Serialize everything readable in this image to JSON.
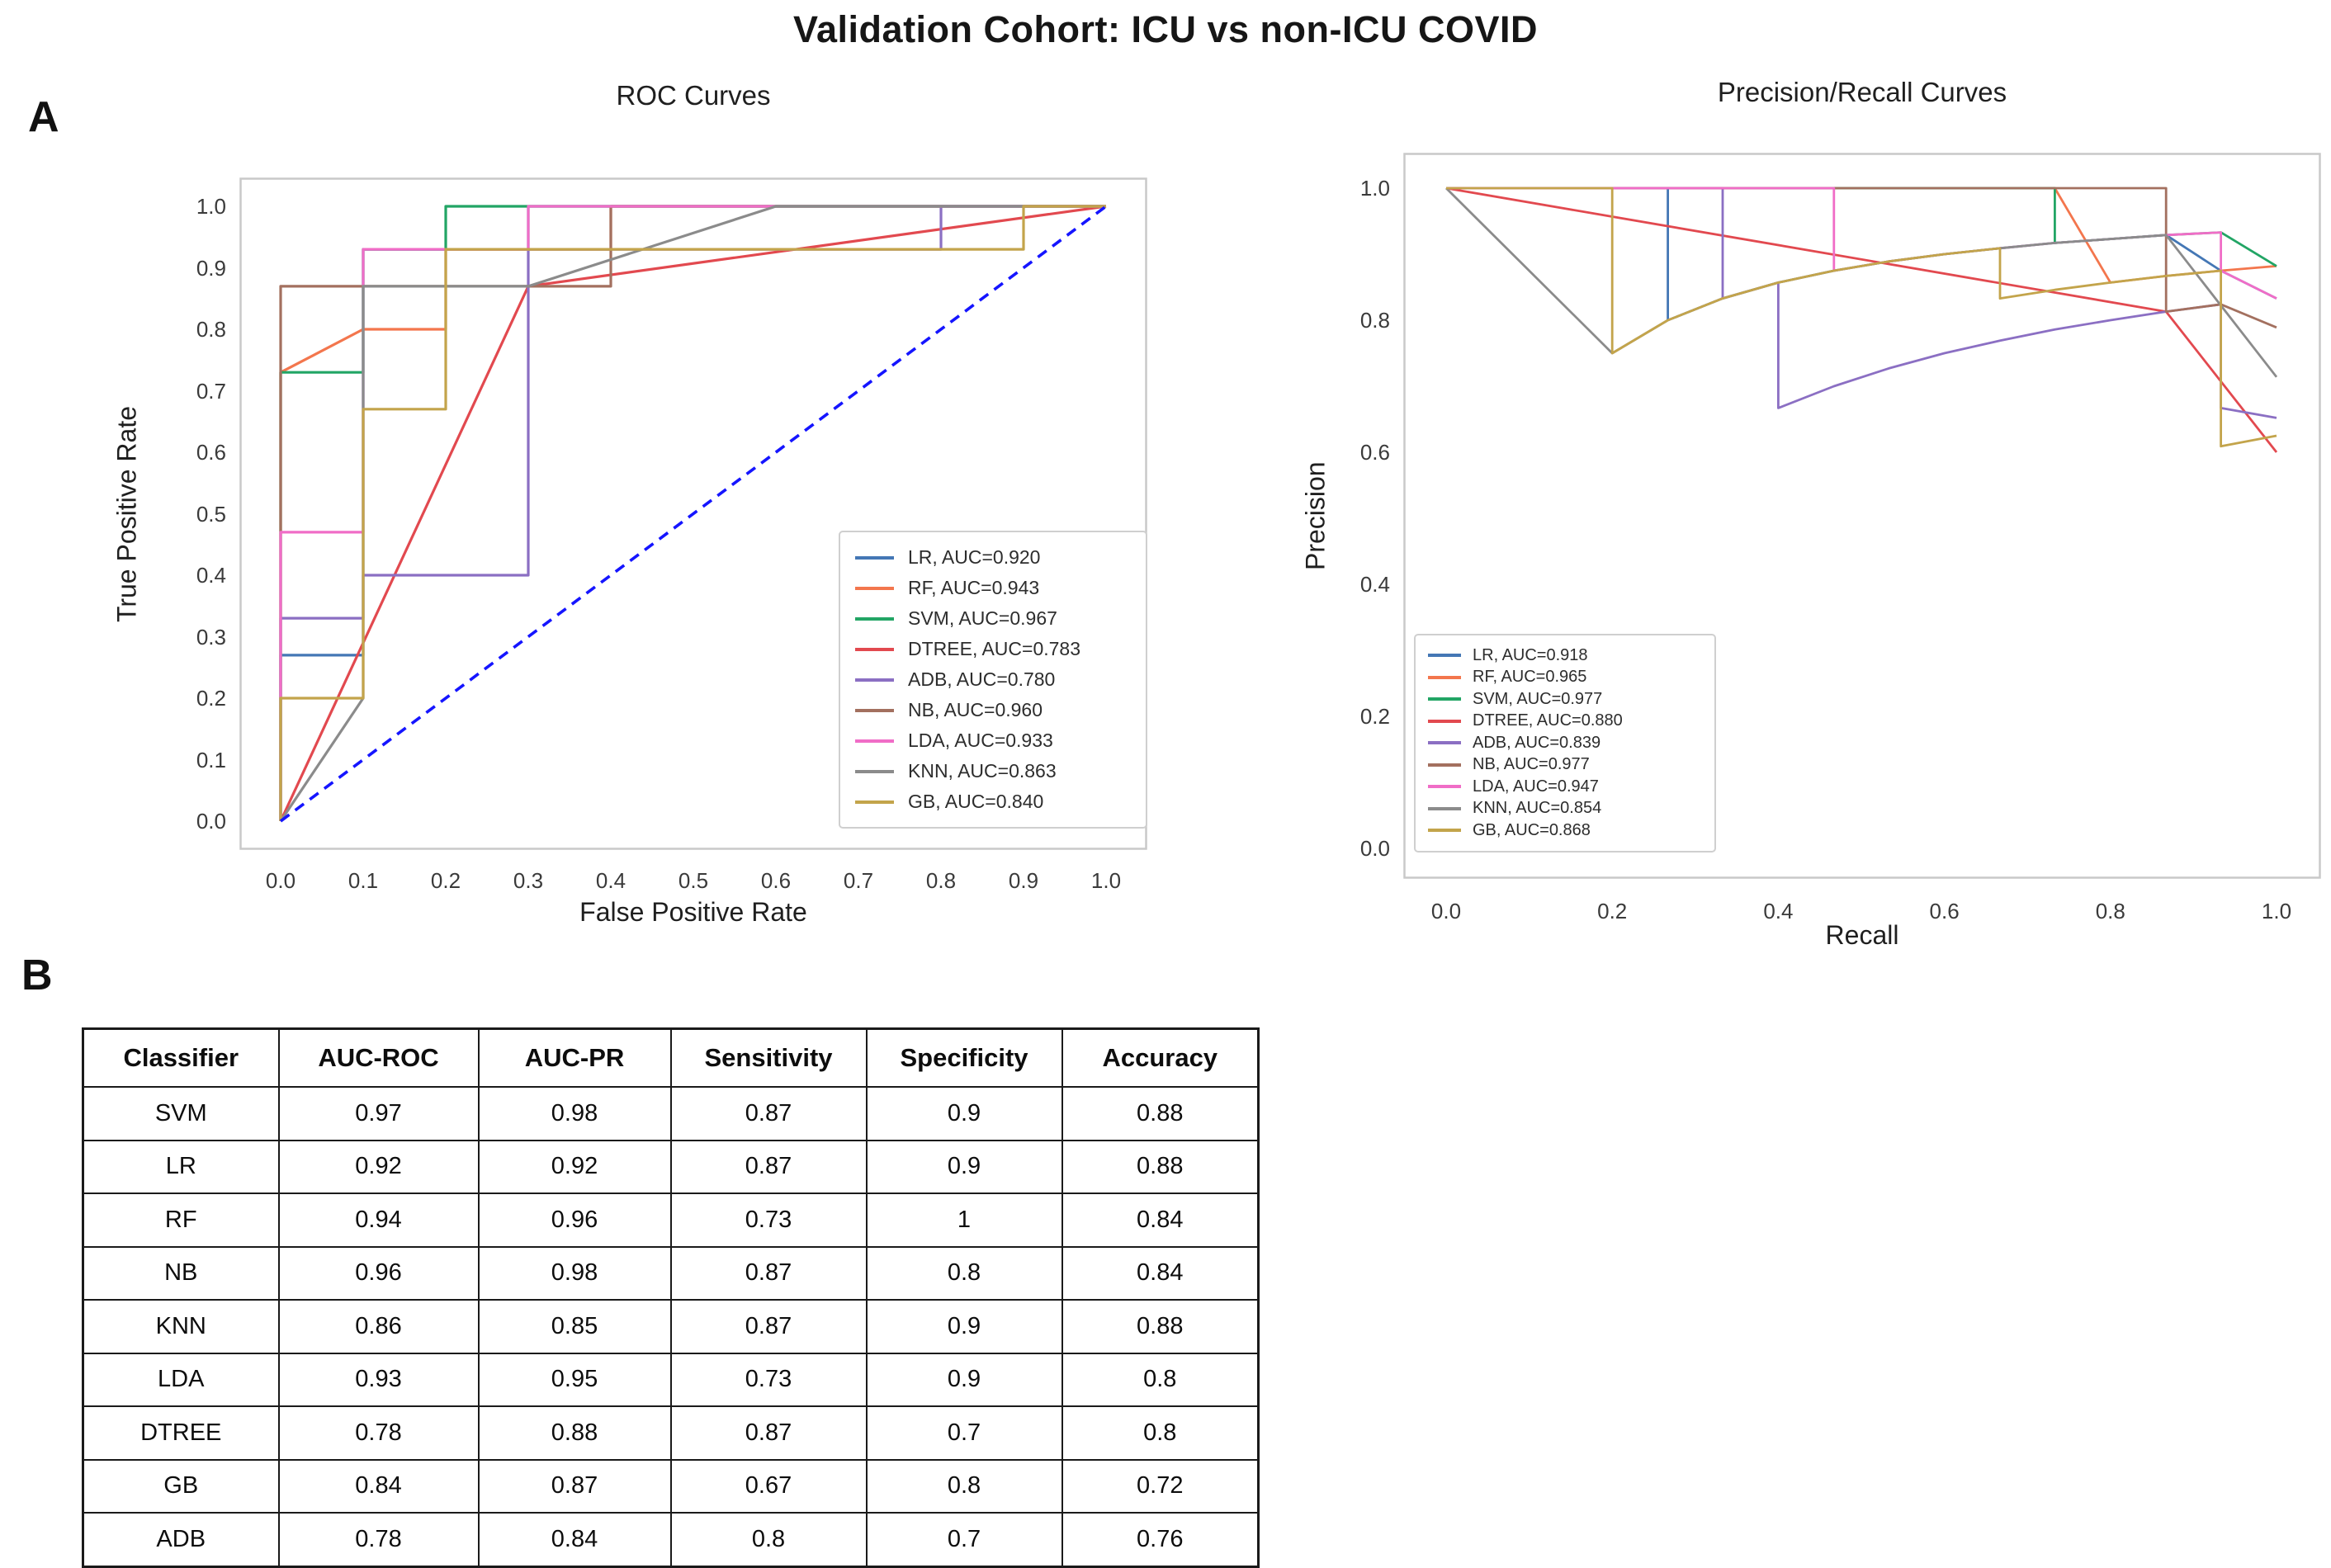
{
  "figure": {
    "title": "Validation Cohort: ICU vs non-ICU COVID",
    "panel_a": "A",
    "panel_b": "B"
  },
  "chart_data": [
    {
      "id": "roc",
      "type": "line",
      "title": "ROC Curves",
      "xlabel": "False Positive Rate",
      "ylabel": "True Positive Rate",
      "xlim": [
        0,
        1
      ],
      "ylim": [
        0,
        1
      ],
      "grid": false,
      "legend_position": "lower right",
      "xticks": [
        "0.0",
        "0.1",
        "0.2",
        "0.3",
        "0.4",
        "0.5",
        "0.6",
        "0.7",
        "0.8",
        "0.9",
        "1.0"
      ],
      "yticks": [
        "0.0",
        "0.1",
        "0.2",
        "0.3",
        "0.4",
        "0.5",
        "0.6",
        "0.7",
        "0.8",
        "0.9",
        "1.0"
      ],
      "chance_line": {
        "style": "dashed",
        "color": "#1515ff",
        "points": [
          [
            0,
            0
          ],
          [
            1,
            1
          ]
        ]
      },
      "series": [
        {
          "name": "LR",
          "auc": 0.92,
          "legend": "LR, AUC=0.920",
          "color": "#4477b5",
          "points": [
            [
              0,
              0
            ],
            [
              0,
              0.27
            ],
            [
              0.1,
              0.27
            ],
            [
              0.1,
              0.93
            ],
            [
              0.3,
              0.93
            ],
            [
              0.3,
              1
            ],
            [
              1,
              1
            ]
          ]
        },
        {
          "name": "RF",
          "auc": 0.943,
          "legend": "RF, AUC=0.943",
          "color": "#f3764d",
          "points": [
            [
              0,
              0
            ],
            [
              0,
              0.73
            ],
            [
              0.1,
              0.8
            ],
            [
              0.2,
              0.8
            ],
            [
              0.2,
              0.93
            ],
            [
              0.4,
              0.93
            ],
            [
              0.4,
              1
            ],
            [
              1,
              1
            ]
          ]
        },
        {
          "name": "SVM",
          "auc": 0.967,
          "legend": "SVM, AUC=0.967",
          "color": "#22a565",
          "points": [
            [
              0,
              0
            ],
            [
              0,
              0.73
            ],
            [
              0.1,
              0.73
            ],
            [
              0.1,
              0.93
            ],
            [
              0.2,
              0.93
            ],
            [
              0.2,
              1
            ],
            [
              1,
              1
            ]
          ]
        },
        {
          "name": "DTREE",
          "auc": 0.783,
          "legend": "DTREE, AUC=0.783",
          "color": "#e2494f",
          "points": [
            [
              0,
              0
            ],
            [
              0.3,
              0.87
            ],
            [
              1,
              1
            ]
          ]
        },
        {
          "name": "ADB",
          "auc": 0.78,
          "legend": "ADB, AUC=0.780",
          "color": "#8b6fc3",
          "points": [
            [
              0,
              0
            ],
            [
              0,
              0.33
            ],
            [
              0.1,
              0.33
            ],
            [
              0.1,
              0.4
            ],
            [
              0.3,
              0.4
            ],
            [
              0.3,
              0.93
            ],
            [
              0.8,
              0.93
            ],
            [
              0.8,
              1
            ],
            [
              1,
              1
            ]
          ]
        },
        {
          "name": "NB",
          "auc": 0.96,
          "legend": "NB, AUC=0.960",
          "color": "#a3705f",
          "points": [
            [
              0,
              0
            ],
            [
              0,
              0.87
            ],
            [
              0.4,
              0.87
            ],
            [
              0.4,
              1
            ],
            [
              1,
              1
            ]
          ]
        },
        {
          "name": "LDA",
          "auc": 0.933,
          "legend": "LDA, AUC=0.933",
          "color": "#f06dc7",
          "points": [
            [
              0,
              0
            ],
            [
              0,
              0.47
            ],
            [
              0.1,
              0.47
            ],
            [
              0.1,
              0.93
            ],
            [
              0.3,
              0.93
            ],
            [
              0.3,
              1
            ],
            [
              1,
              1
            ]
          ]
        },
        {
          "name": "KNN",
          "auc": 0.863,
          "legend": "KNN, AUC=0.863",
          "color": "#8b8b8b",
          "points": [
            [
              0,
              0
            ],
            [
              0.1,
              0.2
            ],
            [
              0.1,
              0.87
            ],
            [
              0.3,
              0.87
            ],
            [
              0.6,
              1
            ],
            [
              1,
              1
            ]
          ]
        },
        {
          "name": "GB",
          "auc": 0.84,
          "legend": "GB, AUC=0.840",
          "color": "#c3a44b",
          "points": [
            [
              0,
              0
            ],
            [
              0,
              0.2
            ],
            [
              0.1,
              0.2
            ],
            [
              0.1,
              0.67
            ],
            [
              0.2,
              0.67
            ],
            [
              0.2,
              0.93
            ],
            [
              0.9,
              0.93
            ],
            [
              0.9,
              1
            ],
            [
              1,
              1
            ]
          ]
        }
      ]
    },
    {
      "id": "pr",
      "type": "line",
      "title": "Precision/Recall Curves",
      "xlabel": "Recall",
      "ylabel": "Precision",
      "xlim": [
        0,
        1
      ],
      "ylim": [
        0,
        1
      ],
      "grid": false,
      "legend_position": "lower left",
      "xticks": [
        "0.0",
        "0.2",
        "0.4",
        "0.6",
        "0.8",
        "1.0"
      ],
      "yticks": [
        "0.0",
        "0.2",
        "0.4",
        "0.6",
        "0.8",
        "1.0"
      ],
      "series": [
        {
          "name": "LR",
          "auc": 0.918,
          "legend": "LR, AUC=0.918",
          "color": "#4477b5",
          "points": [
            [
              0,
              1
            ],
            [
              0.267,
              1
            ],
            [
              0.267,
              0.8
            ],
            [
              0.333,
              0.833
            ],
            [
              0.4,
              0.857
            ],
            [
              0.467,
              0.875
            ],
            [
              0.533,
              0.889
            ],
            [
              0.6,
              0.9
            ],
            [
              0.667,
              0.909
            ],
            [
              0.733,
              0.917
            ],
            [
              0.8,
              0.923
            ],
            [
              0.867,
              0.929
            ],
            [
              0.933,
              0.875
            ],
            [
              1,
              0.833
            ]
          ]
        },
        {
          "name": "RF",
          "auc": 0.965,
          "legend": "RF, AUC=0.965",
          "color": "#f3764d",
          "points": [
            [
              0,
              1
            ],
            [
              0.733,
              1
            ],
            [
              0.8,
              0.857
            ],
            [
              0.867,
              0.867
            ],
            [
              0.933,
              0.875
            ],
            [
              1,
              0.882
            ]
          ]
        },
        {
          "name": "SVM",
          "auc": 0.977,
          "legend": "SVM, AUC=0.977",
          "color": "#22a565",
          "points": [
            [
              0,
              1
            ],
            [
              0.733,
              1
            ],
            [
              0.733,
              0.917
            ],
            [
              0.8,
              0.923
            ],
            [
              0.867,
              0.929
            ],
            [
              0.933,
              0.933
            ],
            [
              1,
              0.882
            ]
          ]
        },
        {
          "name": "DTREE",
          "auc": 0.88,
          "legend": "DTREE, AUC=0.880",
          "color": "#e2494f",
          "points": [
            [
              0,
              1
            ],
            [
              0.867,
              0.813
            ],
            [
              1,
              0.6
            ]
          ]
        },
        {
          "name": "ADB",
          "auc": 0.839,
          "legend": "ADB, AUC=0.839",
          "color": "#8b6fc3",
          "points": [
            [
              0,
              1
            ],
            [
              0.333,
              1
            ],
            [
              0.333,
              0.833
            ],
            [
              0.4,
              0.857
            ],
            [
              0.4,
              0.667
            ],
            [
              0.467,
              0.7
            ],
            [
              0.533,
              0.727
            ],
            [
              0.6,
              0.75
            ],
            [
              0.667,
              0.769
            ],
            [
              0.733,
              0.786
            ],
            [
              0.8,
              0.8
            ],
            [
              0.867,
              0.813
            ],
            [
              0.933,
              0.824
            ],
            [
              0.933,
              0.667
            ],
            [
              1,
              0.652
            ]
          ]
        },
        {
          "name": "NB",
          "auc": 0.977,
          "legend": "NB, AUC=0.977",
          "color": "#a3705f",
          "points": [
            [
              0,
              1
            ],
            [
              0.867,
              1
            ],
            [
              0.867,
              0.813
            ],
            [
              0.933,
              0.824
            ],
            [
              1,
              0.789
            ]
          ]
        },
        {
          "name": "LDA",
          "auc": 0.947,
          "legend": "LDA, AUC=0.947",
          "color": "#f06dc7",
          "points": [
            [
              0,
              1
            ],
            [
              0.467,
              1
            ],
            [
              0.467,
              0.875
            ],
            [
              0.533,
              0.889
            ],
            [
              0.6,
              0.9
            ],
            [
              0.667,
              0.909
            ],
            [
              0.733,
              0.917
            ],
            [
              0.8,
              0.923
            ],
            [
              0.867,
              0.929
            ],
            [
              0.933,
              0.933
            ],
            [
              0.933,
              0.875
            ],
            [
              1,
              0.833
            ]
          ]
        },
        {
          "name": "KNN",
          "auc": 0.854,
          "legend": "KNN, AUC=0.854",
          "color": "#8b8b8b",
          "points": [
            [
              0,
              1
            ],
            [
              0.2,
              0.75
            ],
            [
              0.267,
              0.8
            ],
            [
              0.333,
              0.833
            ],
            [
              0.4,
              0.857
            ],
            [
              0.467,
              0.875
            ],
            [
              0.533,
              0.889
            ],
            [
              0.6,
              0.9
            ],
            [
              0.667,
              0.909
            ],
            [
              0.733,
              0.917
            ],
            [
              0.8,
              0.923
            ],
            [
              0.867,
              0.929
            ],
            [
              1,
              0.714
            ]
          ]
        },
        {
          "name": "GB",
          "auc": 0.868,
          "legend": "GB, AUC=0.868",
          "color": "#c3a44b",
          "points": [
            [
              0,
              1
            ],
            [
              0.2,
              1
            ],
            [
              0.2,
              0.75
            ],
            [
              0.267,
              0.8
            ],
            [
              0.333,
              0.833
            ],
            [
              0.4,
              0.857
            ],
            [
              0.467,
              0.875
            ],
            [
              0.533,
              0.889
            ],
            [
              0.6,
              0.9
            ],
            [
              0.667,
              0.909
            ],
            [
              0.667,
              0.833
            ],
            [
              0.733,
              0.846
            ],
            [
              0.8,
              0.857
            ],
            [
              0.867,
              0.867
            ],
            [
              0.933,
              0.875
            ],
            [
              0.933,
              0.609
            ],
            [
              1,
              0.625
            ]
          ]
        }
      ]
    }
  ],
  "table": {
    "headers": [
      "Classifier",
      "AUC-ROC",
      "AUC-PR",
      "Sensitivity",
      "Specificity",
      "Accuracy"
    ],
    "rows": [
      [
        "SVM",
        "0.97",
        "0.98",
        "0.87",
        "0.9",
        "0.88"
      ],
      [
        "LR",
        "0.92",
        "0.92",
        "0.87",
        "0.9",
        "0.88"
      ],
      [
        "RF",
        "0.94",
        "0.96",
        "0.73",
        "1",
        "0.84"
      ],
      [
        "NB",
        "0.96",
        "0.98",
        "0.87",
        "0.8",
        "0.84"
      ],
      [
        "KNN",
        "0.86",
        "0.85",
        "0.87",
        "0.9",
        "0.88"
      ],
      [
        "LDA",
        "0.93",
        "0.95",
        "0.73",
        "0.9",
        "0.8"
      ],
      [
        "DTREE",
        "0.78",
        "0.88",
        "0.87",
        "0.7",
        "0.8"
      ],
      [
        "GB",
        "0.84",
        "0.87",
        "0.67",
        "0.8",
        "0.72"
      ],
      [
        "ADB",
        "0.78",
        "0.84",
        "0.8",
        "0.7",
        "0.76"
      ]
    ]
  }
}
